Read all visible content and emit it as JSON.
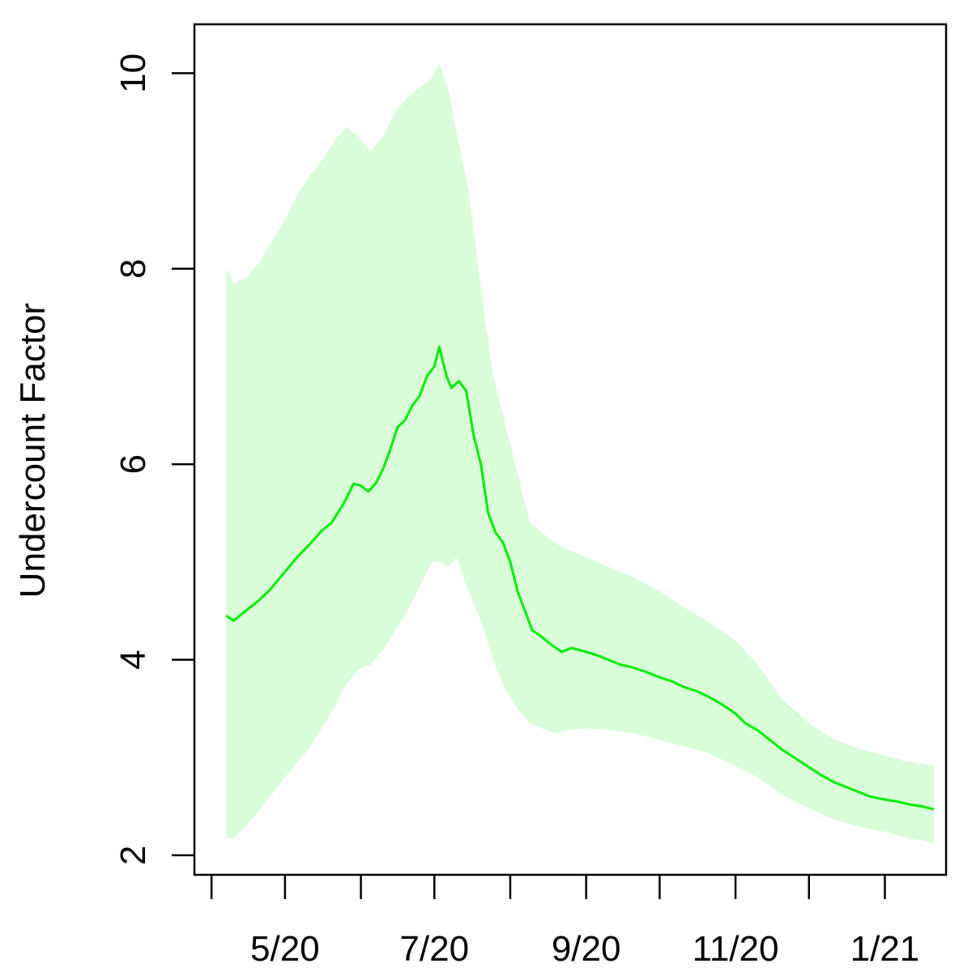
{
  "chart_data": {
    "type": "line",
    "title": "",
    "xlabel": "",
    "ylabel": "Undercount Factor",
    "xlim": [
      "2020-03-25",
      "2021-01-26"
    ],
    "ylim": [
      1.8,
      10.5
    ],
    "yticks": [
      2,
      4,
      6,
      8,
      10
    ],
    "xticks": [
      {
        "date": "2020-04-01",
        "label": ""
      },
      {
        "date": "2020-05-01",
        "label": "5/20"
      },
      {
        "date": "2020-06-01",
        "label": ""
      },
      {
        "date": "2020-07-01",
        "label": "7/20"
      },
      {
        "date": "2020-08-01",
        "label": ""
      },
      {
        "date": "2020-09-01",
        "label": "9/20"
      },
      {
        "date": "2020-10-01",
        "label": ""
      },
      {
        "date": "2020-11-01",
        "label": "11/20"
      },
      {
        "date": "2020-12-01",
        "label": ""
      },
      {
        "date": "2021-01-01",
        "label": "1/21"
      }
    ],
    "grid": false,
    "colors": {
      "line": "#00ee00",
      "band": "#d9fdd9"
    },
    "series": [
      {
        "values": [
          [
            "2020-04-07",
            4.45
          ],
          [
            "2020-04-10",
            4.4
          ],
          [
            "2020-04-15",
            4.5
          ],
          [
            "2020-04-20",
            4.6
          ],
          [
            "2020-04-25",
            4.72
          ],
          [
            "2020-05-01",
            4.9
          ],
          [
            "2020-05-06",
            5.05
          ],
          [
            "2020-05-11",
            5.18
          ],
          [
            "2020-05-16",
            5.32
          ],
          [
            "2020-05-20",
            5.4
          ],
          [
            "2020-05-25",
            5.6
          ],
          [
            "2020-05-29",
            5.8
          ],
          [
            "2020-06-01",
            5.78
          ],
          [
            "2020-06-04",
            5.72
          ],
          [
            "2020-06-07",
            5.8
          ],
          [
            "2020-06-10",
            5.95
          ],
          [
            "2020-06-13",
            6.15
          ],
          [
            "2020-06-16",
            6.38
          ],
          [
            "2020-06-19",
            6.45
          ],
          [
            "2020-06-22",
            6.6
          ],
          [
            "2020-06-25",
            6.7
          ],
          [
            "2020-06-28",
            6.9
          ],
          [
            "2020-07-01",
            7.0
          ],
          [
            "2020-07-03",
            7.2
          ],
          [
            "2020-07-06",
            6.9
          ],
          [
            "2020-07-08",
            6.78
          ],
          [
            "2020-07-11",
            6.85
          ],
          [
            "2020-07-14",
            6.75
          ],
          [
            "2020-07-17",
            6.3
          ],
          [
            "2020-07-20",
            6.0
          ],
          [
            "2020-07-23",
            5.5
          ],
          [
            "2020-07-26",
            5.3
          ],
          [
            "2020-07-29",
            5.2
          ],
          [
            "2020-08-01",
            5.0
          ],
          [
            "2020-08-04",
            4.7
          ],
          [
            "2020-08-07",
            4.5
          ],
          [
            "2020-08-10",
            4.3
          ],
          [
            "2020-08-13",
            4.25
          ],
          [
            "2020-08-18",
            4.15
          ],
          [
            "2020-08-22",
            4.08
          ],
          [
            "2020-08-26",
            4.12
          ],
          [
            "2020-09-01",
            4.08
          ],
          [
            "2020-09-05",
            4.05
          ],
          [
            "2020-09-10",
            4.0
          ],
          [
            "2020-09-15",
            3.95
          ],
          [
            "2020-09-20",
            3.92
          ],
          [
            "2020-09-25",
            3.88
          ],
          [
            "2020-10-01",
            3.82
          ],
          [
            "2020-10-06",
            3.78
          ],
          [
            "2020-10-11",
            3.72
          ],
          [
            "2020-10-16",
            3.68
          ],
          [
            "2020-10-21",
            3.62
          ],
          [
            "2020-10-26",
            3.55
          ],
          [
            "2020-11-01",
            3.45
          ],
          [
            "2020-11-05",
            3.35
          ],
          [
            "2020-11-10",
            3.28
          ],
          [
            "2020-11-15",
            3.18
          ],
          [
            "2020-11-20",
            3.08
          ],
          [
            "2020-11-25",
            3.0
          ],
          [
            "2020-12-01",
            2.9
          ],
          [
            "2020-12-06",
            2.82
          ],
          [
            "2020-12-11",
            2.75
          ],
          [
            "2020-12-16",
            2.7
          ],
          [
            "2020-12-21",
            2.65
          ],
          [
            "2020-12-26",
            2.6
          ],
          [
            "2021-01-01",
            2.57
          ],
          [
            "2021-01-06",
            2.55
          ],
          [
            "2021-01-11",
            2.52
          ],
          [
            "2021-01-16",
            2.5
          ],
          [
            "2021-01-21",
            2.47
          ]
        ],
        "band": [
          [
            "2020-04-07",
            2.18,
            8.0
          ],
          [
            "2020-04-10",
            2.17,
            7.85
          ],
          [
            "2020-04-15",
            2.3,
            7.9
          ],
          [
            "2020-04-20",
            2.45,
            8.05
          ],
          [
            "2020-04-25",
            2.6,
            8.25
          ],
          [
            "2020-05-01",
            2.8,
            8.5
          ],
          [
            "2020-05-06",
            2.95,
            8.75
          ],
          [
            "2020-05-11",
            3.1,
            8.95
          ],
          [
            "2020-05-16",
            3.3,
            9.1
          ],
          [
            "2020-05-21",
            3.5,
            9.3
          ],
          [
            "2020-05-26",
            3.75,
            9.45
          ],
          [
            "2020-05-31",
            3.9,
            9.35
          ],
          [
            "2020-06-05",
            3.95,
            9.2
          ],
          [
            "2020-06-10",
            4.1,
            9.35
          ],
          [
            "2020-06-15",
            4.3,
            9.6
          ],
          [
            "2020-06-20",
            4.5,
            9.75
          ],
          [
            "2020-06-25",
            4.75,
            9.85
          ],
          [
            "2020-06-30",
            5.0,
            9.95
          ],
          [
            "2020-07-03",
            5.0,
            10.1
          ],
          [
            "2020-07-07",
            4.95,
            9.8
          ],
          [
            "2020-07-10",
            5.05,
            9.4
          ],
          [
            "2020-07-15",
            4.7,
            8.8
          ],
          [
            "2020-07-20",
            4.4,
            7.8
          ],
          [
            "2020-07-25",
            4.0,
            6.9
          ],
          [
            "2020-07-30",
            3.7,
            6.4
          ],
          [
            "2020-08-04",
            3.5,
            5.9
          ],
          [
            "2020-08-09",
            3.35,
            5.4
          ],
          [
            "2020-08-14",
            3.3,
            5.3
          ],
          [
            "2020-08-19",
            3.25,
            5.2
          ],
          [
            "2020-08-25",
            3.28,
            5.12
          ],
          [
            "2020-09-01",
            3.3,
            5.05
          ],
          [
            "2020-09-10",
            3.28,
            4.95
          ],
          [
            "2020-09-20",
            3.25,
            4.85
          ],
          [
            "2020-10-01",
            3.18,
            4.7
          ],
          [
            "2020-10-10",
            3.12,
            4.55
          ],
          [
            "2020-10-20",
            3.05,
            4.4
          ],
          [
            "2020-11-01",
            2.92,
            4.2
          ],
          [
            "2020-11-10",
            2.8,
            3.95
          ],
          [
            "2020-11-20",
            2.62,
            3.6
          ],
          [
            "2020-12-01",
            2.48,
            3.35
          ],
          [
            "2020-12-10",
            2.38,
            3.2
          ],
          [
            "2020-12-20",
            2.3,
            3.1
          ],
          [
            "2021-01-01",
            2.24,
            3.02
          ],
          [
            "2021-01-10",
            2.18,
            2.96
          ],
          [
            "2021-01-21",
            2.13,
            2.92
          ]
        ]
      }
    ]
  }
}
